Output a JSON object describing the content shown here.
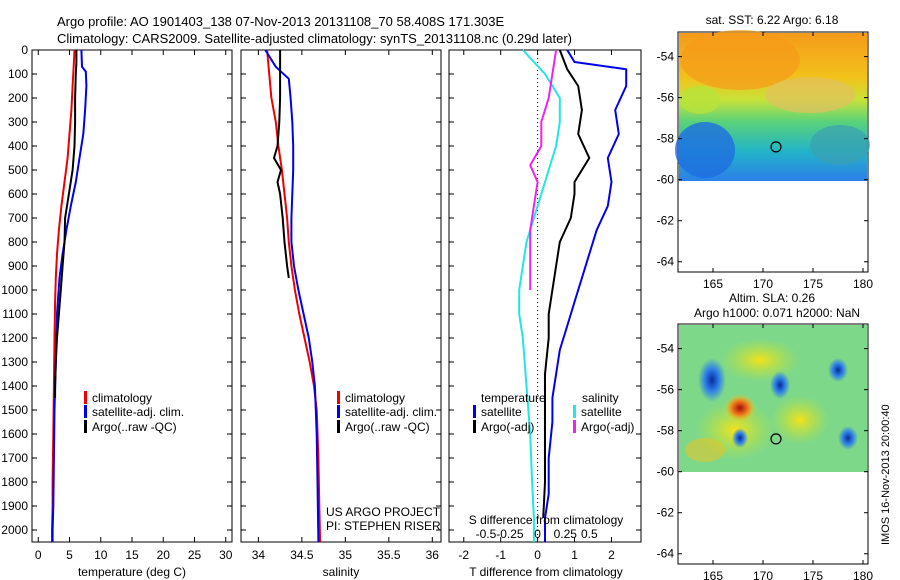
{
  "header": {
    "line1": "Argo profile: AO 1901403_138 07-Nov-2013 20131108_70 58.408S 171.303E",
    "line2": "Climatology: CARS2009. Satellite-adjusted climatology: synTS_20131108.nc (0.29d later)"
  },
  "colors": {
    "climatology": "#ee0000",
    "satellite": "#0000ee",
    "argo": "#000000",
    "salinity_sat": "#22e5e5",
    "salinity_argo": "#ee22ee"
  },
  "credit": {
    "line1": "US ARGO PROJECT",
    "line2": "PI: STEPHEN RISER"
  },
  "stamp": "IMOS 16-Nov-2013 20:00:40",
  "chart_data": [
    {
      "type": "line",
      "id": "temperature",
      "xlabel": "temperature (deg C)",
      "ylabel": "",
      "xlim": [
        -1,
        31
      ],
      "ylim": [
        2050,
        0
      ],
      "xticks": [
        "0",
        "5",
        "10",
        "15",
        "20",
        "25",
        "30"
      ],
      "xtick_values": [
        0,
        5,
        10,
        15,
        20,
        25,
        30
      ],
      "yticks": [
        "0",
        "100",
        "200",
        "300",
        "400",
        "500",
        "600",
        "700",
        "800",
        "900",
        "1000",
        "1100",
        "1200",
        "1300",
        "1400",
        "1500",
        "1600",
        "1700",
        "1800",
        "1900",
        "2000"
      ],
      "ytick_values": [
        0,
        100,
        200,
        300,
        400,
        500,
        600,
        700,
        800,
        900,
        1000,
        1100,
        1200,
        1300,
        1400,
        1500,
        1600,
        1700,
        1800,
        1900,
        2000
      ],
      "legend": [
        "climatology",
        "satellite-adj. clim.",
        "Argo(..raw -QC)"
      ],
      "series": [
        {
          "name": "climatology",
          "color": "#ee0000",
          "x": [
            5.8,
            5.7,
            5.5,
            5.3,
            5.0,
            4.7,
            4.2,
            3.7,
            3.3,
            3.0,
            2.8,
            2.7,
            2.6,
            2.5,
            2.4,
            2.3,
            2.3,
            2.2,
            2.2
          ],
          "y": [
            0,
            50,
            150,
            250,
            350,
            450,
            550,
            650,
            750,
            850,
            950,
            1050,
            1200,
            1400,
            1600,
            1800,
            1900,
            2000,
            2050
          ]
        },
        {
          "name": "satellite-adj. clim.",
          "color": "#0000ee",
          "x": [
            6.9,
            7.0,
            7.6,
            7.7,
            7.5,
            7.2,
            6.6,
            6.0,
            5.2,
            4.5,
            3.9,
            3.4,
            3.0,
            2.8,
            2.6,
            2.5,
            2.4,
            2.3,
            2.3
          ],
          "y": [
            0,
            70,
            90,
            150,
            250,
            350,
            450,
            550,
            650,
            750,
            850,
            950,
            1100,
            1300,
            1500,
            1700,
            1900,
            2000,
            2050
          ]
        },
        {
          "name": "Argo(..raw -QC)",
          "color": "#000000",
          "x": [
            6.1,
            6.1,
            6.0,
            5.9,
            5.9,
            5.8,
            5.5,
            4.9,
            4.6,
            4.3,
            4.2,
            3.9,
            3.6,
            3.3,
            3.0,
            2.8,
            2.7,
            2.7
          ],
          "y": [
            0,
            50,
            100,
            200,
            300,
            400,
            500,
            600,
            650,
            700,
            800,
            900,
            1000,
            1100,
            1200,
            1300,
            1400,
            1450
          ]
        }
      ]
    },
    {
      "type": "line",
      "id": "salinity",
      "xlabel": "salinity",
      "ylabel": "",
      "xlim": [
        33.8,
        36.1
      ],
      "ylim": [
        2050,
        0
      ],
      "xticks": [
        "34",
        "34.5",
        "35",
        "35.5",
        "36"
      ],
      "xtick_values": [
        34,
        34.5,
        35,
        35.5,
        36
      ],
      "legend": [
        "climatology",
        "satellite-adj. clim.",
        "Argo(..raw -QC)"
      ],
      "series": [
        {
          "name": "climatology",
          "color": "#ee0000",
          "x": [
            34.1,
            34.12,
            34.15,
            34.2,
            34.23,
            34.27,
            34.3,
            34.33,
            34.35,
            34.38,
            34.42,
            34.47,
            34.53,
            34.59,
            34.64,
            34.67,
            34.69,
            34.7,
            34.71
          ],
          "y": [
            0,
            80,
            200,
            300,
            400,
            500,
            600,
            700,
            800,
            900,
            1000,
            1100,
            1200,
            1300,
            1400,
            1500,
            1700,
            1900,
            2050
          ]
        },
        {
          "name": "satellite-adj. clim.",
          "color": "#0000ee",
          "x": [
            34.08,
            34.2,
            34.35,
            34.37,
            34.39,
            34.4,
            34.4,
            34.39,
            34.38,
            34.38,
            34.41,
            34.46,
            34.52,
            34.58,
            34.62,
            34.65,
            34.67,
            34.68,
            34.69
          ],
          "y": [
            0,
            70,
            120,
            200,
            300,
            400,
            500,
            600,
            700,
            800,
            900,
            1000,
            1100,
            1200,
            1300,
            1400,
            1600,
            1800,
            2050
          ]
        },
        {
          "name": "Argo(..raw -QC)",
          "color": "#000000",
          "x": [
            34.25,
            34.25,
            34.25,
            34.24,
            34.22,
            34.18,
            34.26,
            34.22,
            34.25,
            34.28,
            34.3,
            34.33,
            34.35
          ],
          "y": [
            0,
            100,
            200,
            300,
            400,
            450,
            500,
            550,
            600,
            700,
            800,
            900,
            950
          ]
        }
      ]
    },
    {
      "type": "line",
      "id": "difference",
      "xlabel": "T difference from climatology",
      "xlabel2": "S difference from climatology",
      "xlim": [
        -2.4,
        2.8
      ],
      "ylim": [
        2050,
        0
      ],
      "xticks": [
        "-2",
        "-1",
        "0",
        "1",
        "2"
      ],
      "xtick_values": [
        -2,
        -1,
        0,
        1,
        2
      ],
      "xticks2": [
        "-0.5",
        "-0.25",
        "0",
        "0.25",
        "0.5"
      ],
      "xtick2_values": [
        -1.4,
        -0.75,
        0,
        0.75,
        1.4
      ],
      "legend_left_title": "temperature",
      "legend_right_title": "salinity",
      "legend": [
        "satellite",
        "Argo(-adj)",
        "satellite",
        "Argo(-adj)"
      ],
      "series": [
        {
          "name": "satellite",
          "group": "temperature",
          "color": "#0000ee",
          "x": [
            0.8,
            1.0,
            2.4,
            2.4,
            2.1,
            2.2,
            1.9,
            2.0,
            1.9,
            1.6,
            1.4,
            1.2,
            1.0,
            0.8,
            0.6,
            0.5,
            0.4,
            0.4,
            0.3,
            0.3,
            0.2,
            0.2
          ],
          "y": [
            0,
            50,
            80,
            150,
            250,
            350,
            450,
            550,
            650,
            750,
            850,
            950,
            1050,
            1150,
            1250,
            1350,
            1450,
            1550,
            1700,
            1850,
            1950,
            2050
          ]
        },
        {
          "name": "Argo(-adj)",
          "group": "temperature",
          "color": "#000000",
          "x": [
            0.6,
            0.8,
            1.1,
            1.2,
            1.1,
            1.4,
            1.0,
            1.0,
            0.9,
            0.6,
            0.5,
            0.4,
            0.3,
            0.3,
            0.2,
            0.2,
            0.2,
            0.2,
            0.15
          ],
          "y": [
            0,
            80,
            150,
            250,
            350,
            450,
            550,
            600,
            700,
            800,
            900,
            1000,
            1100,
            1200,
            1350,
            1500,
            1650,
            1800,
            1950
          ]
        },
        {
          "name": "satellite",
          "group": "salinity",
          "color": "#22e5e5",
          "x": [
            -0.4,
            0.2,
            0.6,
            0.6,
            0.5,
            0.3,
            0.1,
            -0.1,
            -0.3,
            -0.4,
            -0.5,
            -0.5,
            -0.4,
            -0.3,
            -0.2,
            -0.15,
            -0.1,
            -0.1
          ],
          "y": [
            0,
            100,
            200,
            300,
            400,
            500,
            600,
            700,
            800,
            900,
            1000,
            1100,
            1200,
            1400,
            1600,
            1800,
            1950,
            2050
          ]
        },
        {
          "name": "Argo(-adj)",
          "group": "salinity",
          "color": "#ee22ee",
          "x": [
            0.5,
            0.4,
            0.3,
            0.1,
            0.1,
            -0.2,
            0.0,
            -0.1,
            -0.2,
            -0.2,
            -0.2,
            -0.2
          ],
          "y": [
            0,
            100,
            200,
            300,
            400,
            480,
            550,
            650,
            750,
            850,
            950,
            1000
          ]
        }
      ]
    },
    {
      "type": "heatmap",
      "id": "sst-map",
      "title": "sat. SST: 6.22 Argo: 6.18",
      "xlim": [
        161.5,
        180.5
      ],
      "ylim": [
        -64.5,
        -52.8
      ],
      "xticks": [
        "165",
        "170",
        "175",
        "180"
      ],
      "xtick_values": [
        165,
        170,
        175,
        180
      ],
      "yticks": [
        "-54",
        "-56",
        "-58",
        "-60",
        "-62",
        "-64"
      ],
      "ytick_values": [
        -54,
        -56,
        -58,
        -60,
        -62,
        -64
      ],
      "extent": {
        "lon": [
          162,
          180
        ],
        "lat": [
          -60,
          -53
        ]
      },
      "marker": {
        "lon": 171.3,
        "lat": -58.4
      }
    },
    {
      "type": "heatmap",
      "id": "sla-map",
      "title": "Altim. SLA: 0.26",
      "subtitle": "Argo h1000: 0.071 h2000: NaN",
      "xlim": [
        161.5,
        180.5
      ],
      "ylim": [
        -64.5,
        -52.8
      ],
      "xticks": [
        "165",
        "170",
        "175",
        "180"
      ],
      "xtick_values": [
        165,
        170,
        175,
        180
      ],
      "yticks": [
        "-54",
        "-56",
        "-58",
        "-60",
        "-62",
        "-64"
      ],
      "ytick_values": [
        -54,
        -56,
        -58,
        -60,
        -62,
        -64
      ],
      "extent": {
        "lon": [
          162,
          180
        ],
        "lat": [
          -60,
          -53
        ]
      },
      "marker": {
        "lon": 171.3,
        "lat": -58.4
      }
    }
  ]
}
